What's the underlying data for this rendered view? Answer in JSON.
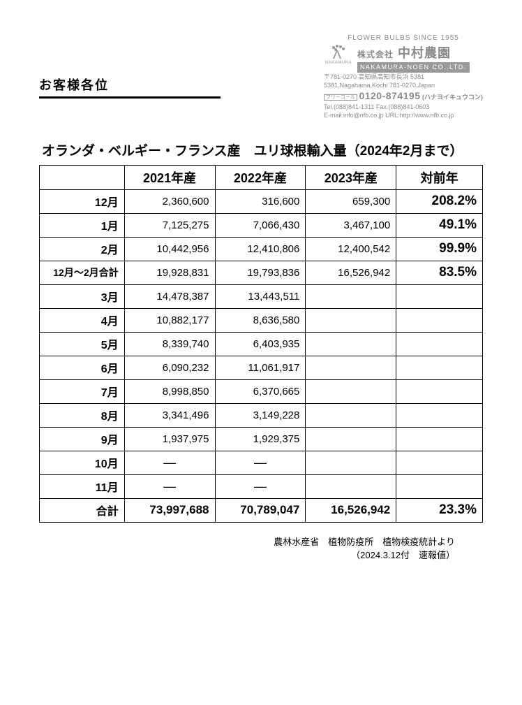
{
  "greeting": "お客様各位",
  "company": {
    "tagline": "FLOWER  BULBS  SINCE  1955",
    "logo_label": "NAKAMURA",
    "name_prefix": "株式会社",
    "name_main": "中村農園",
    "name_en_bar": "NAKAMURA-NOEN  CO.,LTD.",
    "addr_jp": "〒781-0270 高知県高知市長浜 5381",
    "addr_en": "5381,Nagahama,Kochi 781-0270,Japan",
    "freecall_label": "フリーコール",
    "phone_big": "0120-874195",
    "phone_kana": "(ハナヨイキュウコン)",
    "tel_fax": "Tel.(088)841-1311  Fax.(088)841-0603",
    "mail_url": "E-mail:info@nfb.co.jp  URL:http://www.nfb.co.jp"
  },
  "title": "オランダ・ベルギー・フランス産　ユリ球根輸入量（2024年2月まで）",
  "columns": {
    "y2021": "2021年産",
    "y2022": "2022年産",
    "y2023": "2023年産",
    "vs": "対前年"
  },
  "rows": [
    {
      "label": "12月",
      "y2021": "2,360,600",
      "y2022": "316,600",
      "y2023": "659,300",
      "vs": "208.2%"
    },
    {
      "label": "1月",
      "y2021": "7,125,275",
      "y2022": "7,066,430",
      "y2023": "3,467,100",
      "vs": "49.1%"
    },
    {
      "label": "2月",
      "y2021": "10,442,956",
      "y2022": "12,410,806",
      "y2023": "12,400,542",
      "vs": "99.9%"
    },
    {
      "label": "12月～2月合計",
      "y2021": "19,928,831",
      "y2022": "19,793,836",
      "y2023": "16,526,942",
      "vs": "83.5%",
      "subtotal": true
    },
    {
      "label": "3月",
      "y2021": "14,478,387",
      "y2022": "13,443,511",
      "y2023": "",
      "vs": ""
    },
    {
      "label": "4月",
      "y2021": "10,882,177",
      "y2022": "8,636,580",
      "y2023": "",
      "vs": ""
    },
    {
      "label": "5月",
      "y2021": "8,339,740",
      "y2022": "6,403,935",
      "y2023": "",
      "vs": ""
    },
    {
      "label": "6月",
      "y2021": "6,090,232",
      "y2022": "11,061,917",
      "y2023": "",
      "vs": ""
    },
    {
      "label": "7月",
      "y2021": "8,998,850",
      "y2022": "6,370,665",
      "y2023": "",
      "vs": ""
    },
    {
      "label": "8月",
      "y2021": "3,341,496",
      "y2022": "3,149,228",
      "y2023": "",
      "vs": ""
    },
    {
      "label": "9月",
      "y2021": "1,937,975",
      "y2022": "1,929,375",
      "y2023": "",
      "vs": ""
    },
    {
      "label": "10月",
      "y2021": "―",
      "y2022": "―",
      "y2023": "",
      "vs": "",
      "dash": true
    },
    {
      "label": "11月",
      "y2021": "―",
      "y2022": "―",
      "y2023": "",
      "vs": "",
      "dash": true
    }
  ],
  "total": {
    "label": "合計",
    "y2021": "73,997,688",
    "y2022": "70,789,047",
    "y2023": "16,526,942",
    "vs": "23.3%"
  },
  "source": {
    "line1": "農林水産省　植物防疫所　植物検疫統計より",
    "line2": "（2024.3.12付　速報値）"
  },
  "style": {
    "border_color": "#000000",
    "company_text_color": "#8a8a8a",
    "background_color": "#ffffff"
  }
}
